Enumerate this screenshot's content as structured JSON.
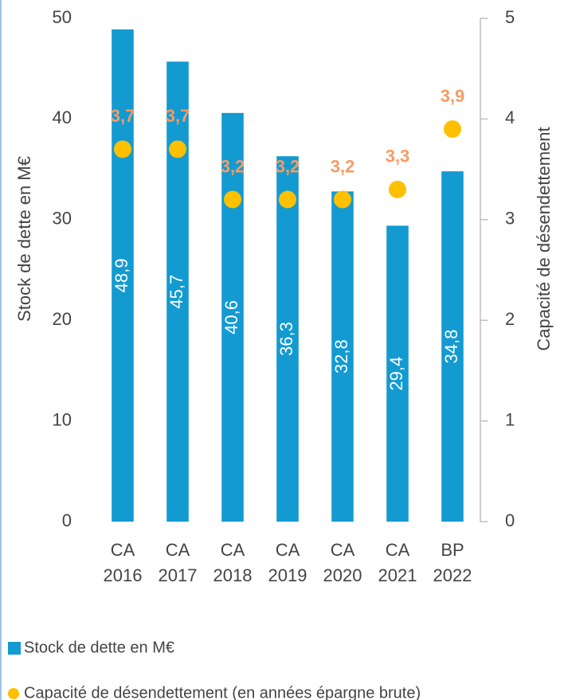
{
  "chart_data": {
    "type": "bar",
    "categories": [
      [
        "CA",
        "2016"
      ],
      [
        "CA",
        "2017"
      ],
      [
        "CA",
        "2018"
      ],
      [
        "CA",
        "2019"
      ],
      [
        "CA",
        "2020"
      ],
      [
        "CA",
        "2021"
      ],
      [
        "BP",
        "2022"
      ]
    ],
    "ylabel": "Stock de dette en M€",
    "y2label": "Capacité de désendettement",
    "ylim": [
      0,
      50
    ],
    "yticks": [
      0,
      10,
      20,
      30,
      40,
      50
    ],
    "y2lim": [
      0,
      5
    ],
    "y2ticks": [
      0,
      1,
      2,
      3,
      4,
      5
    ],
    "grid": false,
    "legend": "bottom",
    "series": [
      {
        "name": "Stock de dette en M€",
        "type": "bar",
        "color": "#139ad1",
        "values": [
          48.9,
          45.7,
          40.6,
          36.3,
          32.8,
          29.4,
          34.8
        ],
        "value_labels": [
          "48,9",
          "45,7",
          "40,6",
          "36,3",
          "32,8",
          "29,4",
          "34,8"
        ],
        "value_label_color": "#ffffff"
      },
      {
        "name": "Capacité de désendettement (en années épargne brute)",
        "type": "scatter",
        "axis": "y2",
        "color": "#ffc000",
        "values": [
          3.7,
          3.7,
          3.2,
          3.2,
          3.2,
          3.3,
          3.9
        ],
        "value_labels": [
          "3,7",
          "3,7",
          "3,2",
          "3,2",
          "3,2",
          "3,3",
          "3,9"
        ],
        "value_label_color": "#f79b63"
      }
    ]
  }
}
